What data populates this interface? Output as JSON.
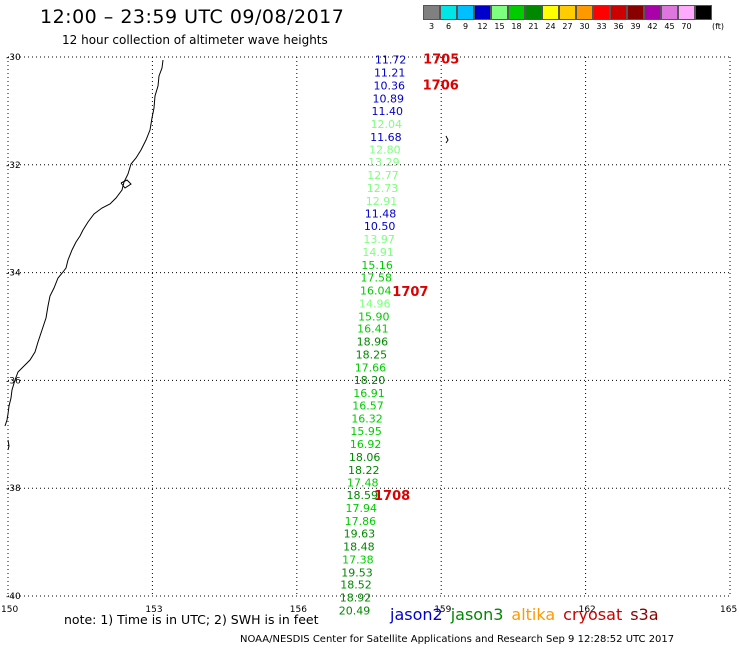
{
  "header": {
    "title": "12:00 – 23:59 UTC 09/08/2017",
    "subtitle": "12 hour collection of altimeter wave heights"
  },
  "color_scale": {
    "unit": "(ft)",
    "bins": [
      {
        "label": "3",
        "color": "#808080"
      },
      {
        "label": "6",
        "color": "#00e5e5"
      },
      {
        "label": "9",
        "color": "#00bfff"
      },
      {
        "label": "12",
        "color": "#0000cd"
      },
      {
        "label": "15",
        "color": "#7fff7f"
      },
      {
        "label": "18",
        "color": "#00cc00"
      },
      {
        "label": "21",
        "color": "#008800"
      },
      {
        "label": "24",
        "color": "#ffff00"
      },
      {
        "label": "27",
        "color": "#ffcc00"
      },
      {
        "label": "30",
        "color": "#ff9900"
      },
      {
        "label": "33",
        "color": "#ff0000"
      },
      {
        "label": "36",
        "color": "#cc0000"
      },
      {
        "label": "39",
        "color": "#880000"
      },
      {
        "label": "42",
        "color": "#aa00aa"
      },
      {
        "label": "45",
        "color": "#dd77dd"
      },
      {
        "label": "70",
        "color": "#ffaaff"
      },
      {
        "label": "",
        "color": "#000000"
      }
    ]
  },
  "map": {
    "lon_labels": [
      "150",
      "153",
      "156",
      "159",
      "162",
      "165"
    ],
    "lat_labels": [
      "-30",
      "-32",
      "-34",
      "-36",
      "-38",
      "-40"
    ],
    "lon_range": [
      150,
      165
    ],
    "lat_range": [
      -30,
      -40
    ],
    "observations": [
      {
        "wave_height": "11.72",
        "lon": 157.95,
        "lat": -30.05,
        "color": "#0000cd"
      },
      {
        "wave_height": "11.21",
        "lon": 157.93,
        "lat": -30.29,
        "color": "#0000cd"
      },
      {
        "wave_height": "10.36",
        "lon": 157.92,
        "lat": -30.53,
        "color": "#0000cd"
      },
      {
        "wave_height": "10.89",
        "lon": 157.9,
        "lat": -30.77,
        "color": "#0000cd"
      },
      {
        "wave_height": "11.40",
        "lon": 157.88,
        "lat": -31.0,
        "color": "#0000cd"
      },
      {
        "wave_height": "12.04",
        "lon": 157.86,
        "lat": -31.24,
        "color": "#7fff7f"
      },
      {
        "wave_height": "11.68",
        "lon": 157.85,
        "lat": -31.48,
        "color": "#0000cd"
      },
      {
        "wave_height": "12.80",
        "lon": 157.83,
        "lat": -31.72,
        "color": "#7fff7f"
      },
      {
        "wave_height": "13.29",
        "lon": 157.81,
        "lat": -31.95,
        "color": "#7fff7f"
      },
      {
        "wave_height": "12.77",
        "lon": 157.79,
        "lat": -32.19,
        "color": "#7fff7f"
      },
      {
        "wave_height": "12.73",
        "lon": 157.78,
        "lat": -32.43,
        "color": "#7fff7f"
      },
      {
        "wave_height": "12.91",
        "lon": 157.76,
        "lat": -32.67,
        "color": "#7fff7f"
      },
      {
        "wave_height": "11.48",
        "lon": 157.74,
        "lat": -32.9,
        "color": "#0000cd"
      },
      {
        "wave_height": "10.50",
        "lon": 157.72,
        "lat": -33.14,
        "color": "#0000cd"
      },
      {
        "wave_height": "13.97",
        "lon": 157.71,
        "lat": -33.38,
        "color": "#7fff7f"
      },
      {
        "wave_height": "14.91",
        "lon": 157.69,
        "lat": -33.62,
        "color": "#7fff7f"
      },
      {
        "wave_height": "15.16",
        "lon": 157.67,
        "lat": -33.86,
        "color": "#00cc00"
      },
      {
        "wave_height": "17.58",
        "lon": 157.65,
        "lat": -34.09,
        "color": "#00cc00"
      },
      {
        "wave_height": "16.04",
        "lon": 157.64,
        "lat": -34.33,
        "color": "#00cc00"
      },
      {
        "wave_height": "14.96",
        "lon": 157.62,
        "lat": -34.57,
        "color": "#7fff7f"
      },
      {
        "wave_height": "15.90",
        "lon": 157.6,
        "lat": -34.81,
        "color": "#00cc00"
      },
      {
        "wave_height": "16.41",
        "lon": 157.58,
        "lat": -35.04,
        "color": "#00cc00"
      },
      {
        "wave_height": "18.96",
        "lon": 157.57,
        "lat": -35.28,
        "color": "#008800"
      },
      {
        "wave_height": "18.25",
        "lon": 157.55,
        "lat": -35.52,
        "color": "#008800"
      },
      {
        "wave_height": "17.66",
        "lon": 157.53,
        "lat": -35.76,
        "color": "#00cc00"
      },
      {
        "wave_height": "18.20",
        "lon": 157.51,
        "lat": -35.99,
        "color": "#008800"
      },
      {
        "wave_height": "16.91",
        "lon": 157.5,
        "lat": -36.23,
        "color": "#00cc00"
      },
      {
        "wave_height": "16.57",
        "lon": 157.48,
        "lat": -36.47,
        "color": "#00cc00"
      },
      {
        "wave_height": "16.32",
        "lon": 157.46,
        "lat": -36.71,
        "color": "#00cc00"
      },
      {
        "wave_height": "15.95",
        "lon": 157.44,
        "lat": -36.94,
        "color": "#00cc00"
      },
      {
        "wave_height": "16.92",
        "lon": 157.43,
        "lat": -37.18,
        "color": "#00cc00"
      },
      {
        "wave_height": "18.06",
        "lon": 157.41,
        "lat": -37.42,
        "color": "#008800"
      },
      {
        "wave_height": "18.22",
        "lon": 157.39,
        "lat": -37.66,
        "color": "#008800"
      },
      {
        "wave_height": "17.48",
        "lon": 157.37,
        "lat": -37.89,
        "color": "#00cc00"
      },
      {
        "wave_height": "18.59",
        "lon": 157.36,
        "lat": -38.13,
        "color": "#008800"
      },
      {
        "wave_height": "17.94",
        "lon": 157.34,
        "lat": -38.37,
        "color": "#00cc00"
      },
      {
        "wave_height": "17.86",
        "lon": 157.32,
        "lat": -38.61,
        "color": "#00cc00"
      },
      {
        "wave_height": "19.63",
        "lon": 157.3,
        "lat": -38.84,
        "color": "#008800"
      },
      {
        "wave_height": "18.48",
        "lon": 157.29,
        "lat": -39.08,
        "color": "#008800"
      },
      {
        "wave_height": "17.38",
        "lon": 157.27,
        "lat": -39.32,
        "color": "#00cc00"
      },
      {
        "wave_height": "19.53",
        "lon": 157.25,
        "lat": -39.56,
        "color": "#008800"
      },
      {
        "wave_height": "18.52",
        "lon": 157.23,
        "lat": -39.79,
        "color": "#008800"
      },
      {
        "wave_height": "18.92",
        "lon": 157.22,
        "lat": -40.03,
        "color": "#008800"
      },
      {
        "wave_height": "20.49",
        "lon": 157.2,
        "lat": -40.27,
        "color": "#008800"
      }
    ],
    "time_labels": [
      {
        "text": "1705",
        "lon": 159.0,
        "lat": -30.03
      },
      {
        "text": "1706",
        "lon": 158.99,
        "lat": -30.51
      },
      {
        "text": "1707",
        "lon": 158.36,
        "lat": -34.34
      },
      {
        "text": "1708",
        "lon": 157.98,
        "lat": -38.13
      }
    ],
    "time_label_color": "#dd0000"
  },
  "footer": {
    "note": "note:  1) Time is in UTC;  2) SWH is in feet",
    "satellites": [
      {
        "name": "jason2",
        "color": "#0000cc"
      },
      {
        "name": "jason3",
        "color": "#008800"
      },
      {
        "name": "altika",
        "color": "#ff9900"
      },
      {
        "name": "cryosat",
        "color": "#cc0000"
      },
      {
        "name": "s3a",
        "color": "#880000"
      }
    ],
    "credit": "NOAA/NESDIS Center for Satellite Applications and Research    Sep  9 12:28:52 UTC 2017"
  }
}
